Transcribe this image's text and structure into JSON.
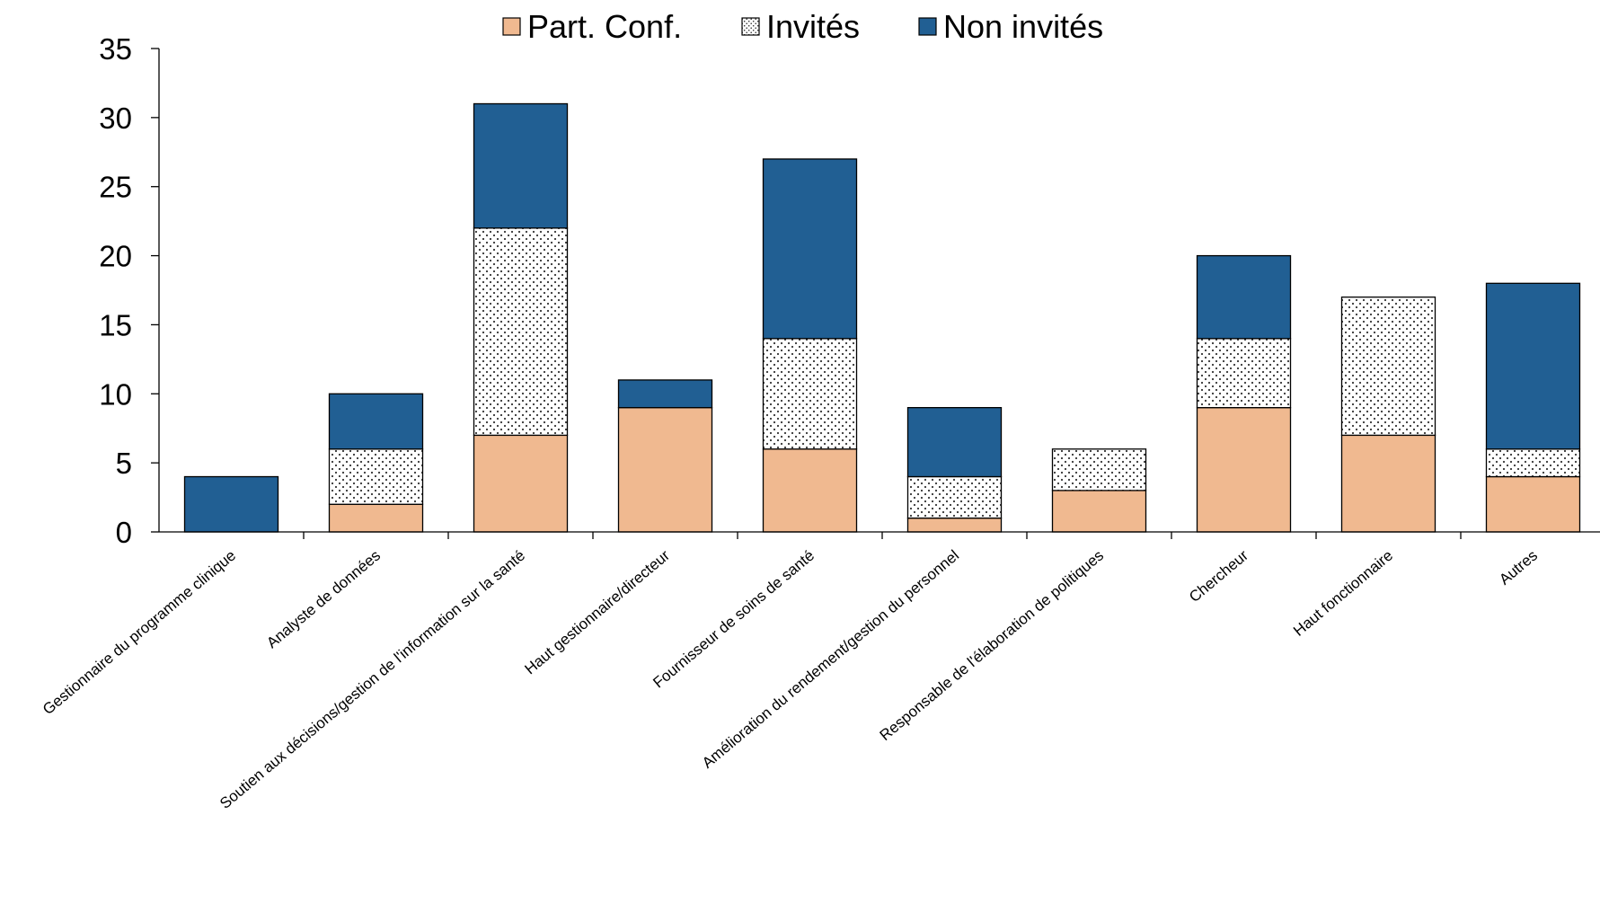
{
  "chart_data": {
    "type": "bar",
    "stacked": true,
    "title": "",
    "xlabel": "",
    "ylabel": "",
    "ylim": [
      0,
      35
    ],
    "yticks": [
      0,
      5,
      10,
      15,
      20,
      25,
      30,
      35
    ],
    "grid": false,
    "legend_position": "top-center",
    "categories": [
      "Gestionnaire du programme clinique",
      "Analyste de données",
      "Soutien aux décisions/gestion de l'information sur la santé",
      "Haut gestionnaire/directeur",
      "Fournisseur de soins de santé",
      "Amélioration du rendement/gestion du personnel",
      "Responsable de l'élaboration de politiques",
      "Chercheur",
      "Haut fonctionnaire",
      "Autres"
    ],
    "series": [
      {
        "name": "Part. Conf.",
        "color": "#f0b990",
        "pattern": "solid",
        "values": [
          0,
          2,
          7,
          9,
          6,
          1,
          3,
          9,
          7,
          4
        ]
      },
      {
        "name": "Invités",
        "color": "#ffffff",
        "pattern": "dots",
        "values": [
          0,
          4,
          15,
          0,
          8,
          3,
          3,
          5,
          10,
          2
        ]
      },
      {
        "name": "Non invités",
        "color": "#215f93",
        "pattern": "solid",
        "values": [
          4,
          4,
          9,
          2,
          13,
          5,
          0,
          6,
          0,
          12
        ]
      }
    ]
  }
}
